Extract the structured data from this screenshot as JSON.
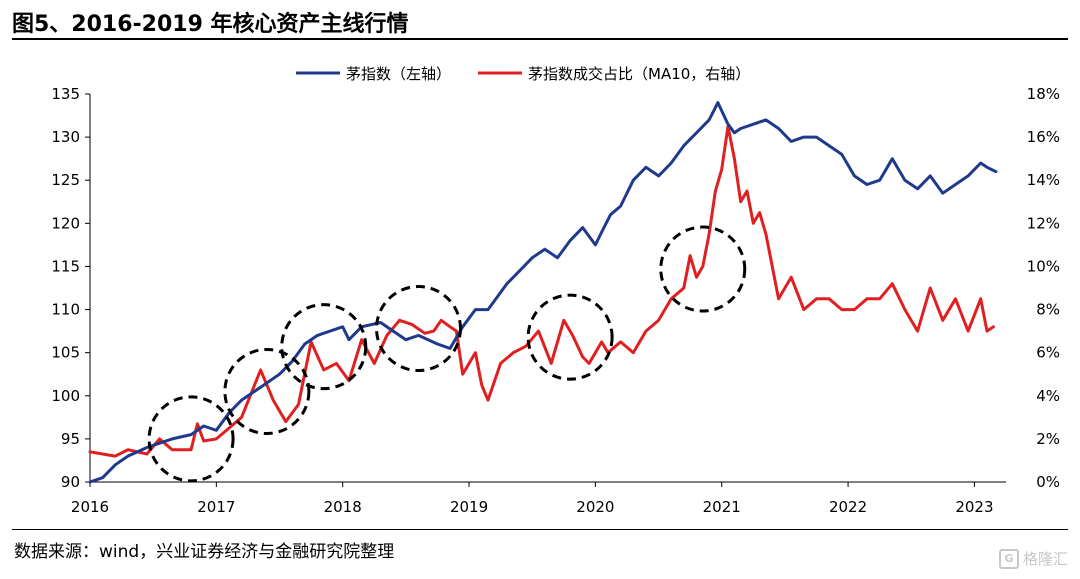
{
  "header": {
    "title": "图5、2016-2019 年核心资产主线行情"
  },
  "footer": {
    "source": "数据来源：wind，兴业证券经济与金融研究院整理",
    "watermark": "格隆汇",
    "watermark_logo": "G"
  },
  "colors": {
    "series_left": "#1f3a8c",
    "series_right": "#e02020",
    "circle": "#000000"
  },
  "chart_data": {
    "type": "line",
    "title": "",
    "legend": "top-center",
    "x_range": [
      2016.0,
      2023.25
    ],
    "x_ticks": [
      "2016",
      "2017",
      "2018",
      "2019",
      "2020",
      "2021",
      "2022",
      "2023"
    ],
    "y_left": {
      "range": [
        90,
        135
      ],
      "ticks": [
        "90",
        "95",
        "100",
        "105",
        "110",
        "115",
        "120",
        "125",
        "130",
        "135"
      ]
    },
    "y_right": {
      "range": [
        0,
        18
      ],
      "ticks": [
        "0%",
        "2%",
        "4%",
        "6%",
        "8%",
        "10%",
        "12%",
        "14%",
        "16%",
        "18%"
      ]
    },
    "series": [
      {
        "name": "茅指数（左轴）",
        "axis": "left",
        "x": [
          2016.0,
          2016.1,
          2016.2,
          2016.3,
          2016.45,
          2016.55,
          2016.65,
          2016.8,
          2016.9,
          2017.0,
          2017.1,
          2017.2,
          2017.35,
          2017.5,
          2017.6,
          2017.7,
          2017.8,
          2017.9,
          2018.0,
          2018.05,
          2018.15,
          2018.3,
          2018.4,
          2018.5,
          2018.6,
          2018.75,
          2018.85,
          2018.95,
          2019.05,
          2019.15,
          2019.3,
          2019.4,
          2019.5,
          2019.6,
          2019.7,
          2019.8,
          2019.9,
          2020.0,
          2020.05,
          2020.12,
          2020.2,
          2020.3,
          2020.4,
          2020.5,
          2020.6,
          2020.7,
          2020.8,
          2020.9,
          2020.97,
          2021.05,
          2021.1,
          2021.15,
          2021.25,
          2021.35,
          2021.45,
          2021.55,
          2021.65,
          2021.75,
          2021.85,
          2021.95,
          2022.05,
          2022.15,
          2022.25,
          2022.35,
          2022.45,
          2022.55,
          2022.65,
          2022.75,
          2022.85,
          2022.95,
          2023.05,
          2023.1,
          2023.17
        ],
        "values": [
          90,
          90.5,
          92,
          93,
          94,
          94.5,
          95,
          95.5,
          96.5,
          96,
          98,
          99.5,
          101,
          102.5,
          104,
          106,
          107,
          107.5,
          108,
          106.5,
          108,
          108.5,
          107.5,
          106.5,
          107,
          106,
          105.5,
          108,
          110,
          110,
          113,
          114.5,
          116,
          117,
          116,
          118,
          119.5,
          117.5,
          119,
          121,
          122,
          125,
          126.5,
          125.5,
          127,
          129,
          130.5,
          132,
          134,
          131.5,
          130.5,
          131,
          131.5,
          132,
          131,
          129.5,
          130,
          130,
          129,
          128,
          125.5,
          124.5,
          125,
          127.5,
          125,
          124,
          125.5,
          123.5,
          124.5,
          125.5,
          127,
          126.5,
          126
        ]
      },
      {
        "name": "茅指数成交占比（MA10，右轴）",
        "axis": "right",
        "x": [
          2016.0,
          2016.1,
          2016.2,
          2016.3,
          2016.45,
          2016.55,
          2016.65,
          2016.8,
          2016.85,
          2016.9,
          2017.0,
          2017.1,
          2017.2,
          2017.35,
          2017.45,
          2017.55,
          2017.65,
          2017.75,
          2017.85,
          2017.95,
          2018.05,
          2018.15,
          2018.25,
          2018.35,
          2018.45,
          2018.55,
          2018.65,
          2018.72,
          2018.78,
          2018.85,
          2018.9,
          2018.95,
          2019.05,
          2019.1,
          2019.15,
          2019.25,
          2019.35,
          2019.45,
          2019.55,
          2019.65,
          2019.75,
          2019.82,
          2019.9,
          2019.95,
          2020.05,
          2020.1,
          2020.2,
          2020.3,
          2020.4,
          2020.5,
          2020.6,
          2020.7,
          2020.75,
          2020.8,
          2020.85,
          2020.9,
          2020.95,
          2021.0,
          2021.05,
          2021.1,
          2021.15,
          2021.2,
          2021.25,
          2021.3,
          2021.35,
          2021.45,
          2021.55,
          2021.65,
          2021.75,
          2021.85,
          2021.95,
          2022.05,
          2022.15,
          2022.25,
          2022.35,
          2022.45,
          2022.55,
          2022.65,
          2022.75,
          2022.85,
          2022.95,
          2023.05,
          2023.1,
          2023.15
        ],
        "values": [
          1.4,
          1.3,
          1.2,
          1.5,
          1.3,
          2.0,
          1.5,
          1.5,
          2.7,
          1.9,
          2.0,
          2.5,
          3.0,
          5.2,
          3.8,
          2.8,
          3.6,
          6.5,
          5.2,
          5.5,
          4.7,
          6.6,
          5.5,
          6.8,
          7.5,
          7.3,
          6.9,
          7.0,
          7.5,
          7.2,
          7.0,
          5.0,
          6.0,
          4.5,
          3.8,
          5.5,
          6.0,
          6.3,
          7.0,
          5.5,
          7.5,
          6.8,
          5.8,
          5.5,
          6.5,
          6.0,
          6.5,
          6.0,
          7.0,
          7.5,
          8.5,
          9.0,
          10.5,
          9.5,
          10.0,
          11.5,
          13.5,
          14.5,
          16.5,
          15.0,
          13.0,
          13.5,
          12.0,
          12.5,
          11.5,
          8.5,
          9.5,
          8.0,
          8.5,
          8.5,
          8.0,
          8.0,
          8.5,
          8.5,
          9.2,
          8.0,
          7.0,
          9.0,
          7.5,
          8.5,
          7.0,
          8.5,
          7.0,
          7.2
        ]
      }
    ],
    "annotations": [
      {
        "type": "dashed-circle",
        "x": 2016.8,
        "y_left": 95
      },
      {
        "type": "dashed-circle",
        "x": 2017.4,
        "y_left": 100.5
      },
      {
        "type": "dashed-circle",
        "x": 2017.85,
        "y_left": 105.7
      },
      {
        "type": "dashed-circle",
        "x": 2018.6,
        "y_left": 107.8
      },
      {
        "type": "dashed-circle",
        "x": 2019.8,
        "y_left": 106.8
      },
      {
        "type": "dashed-circle",
        "x": 2020.85,
        "y_left": 114.7
      }
    ]
  }
}
